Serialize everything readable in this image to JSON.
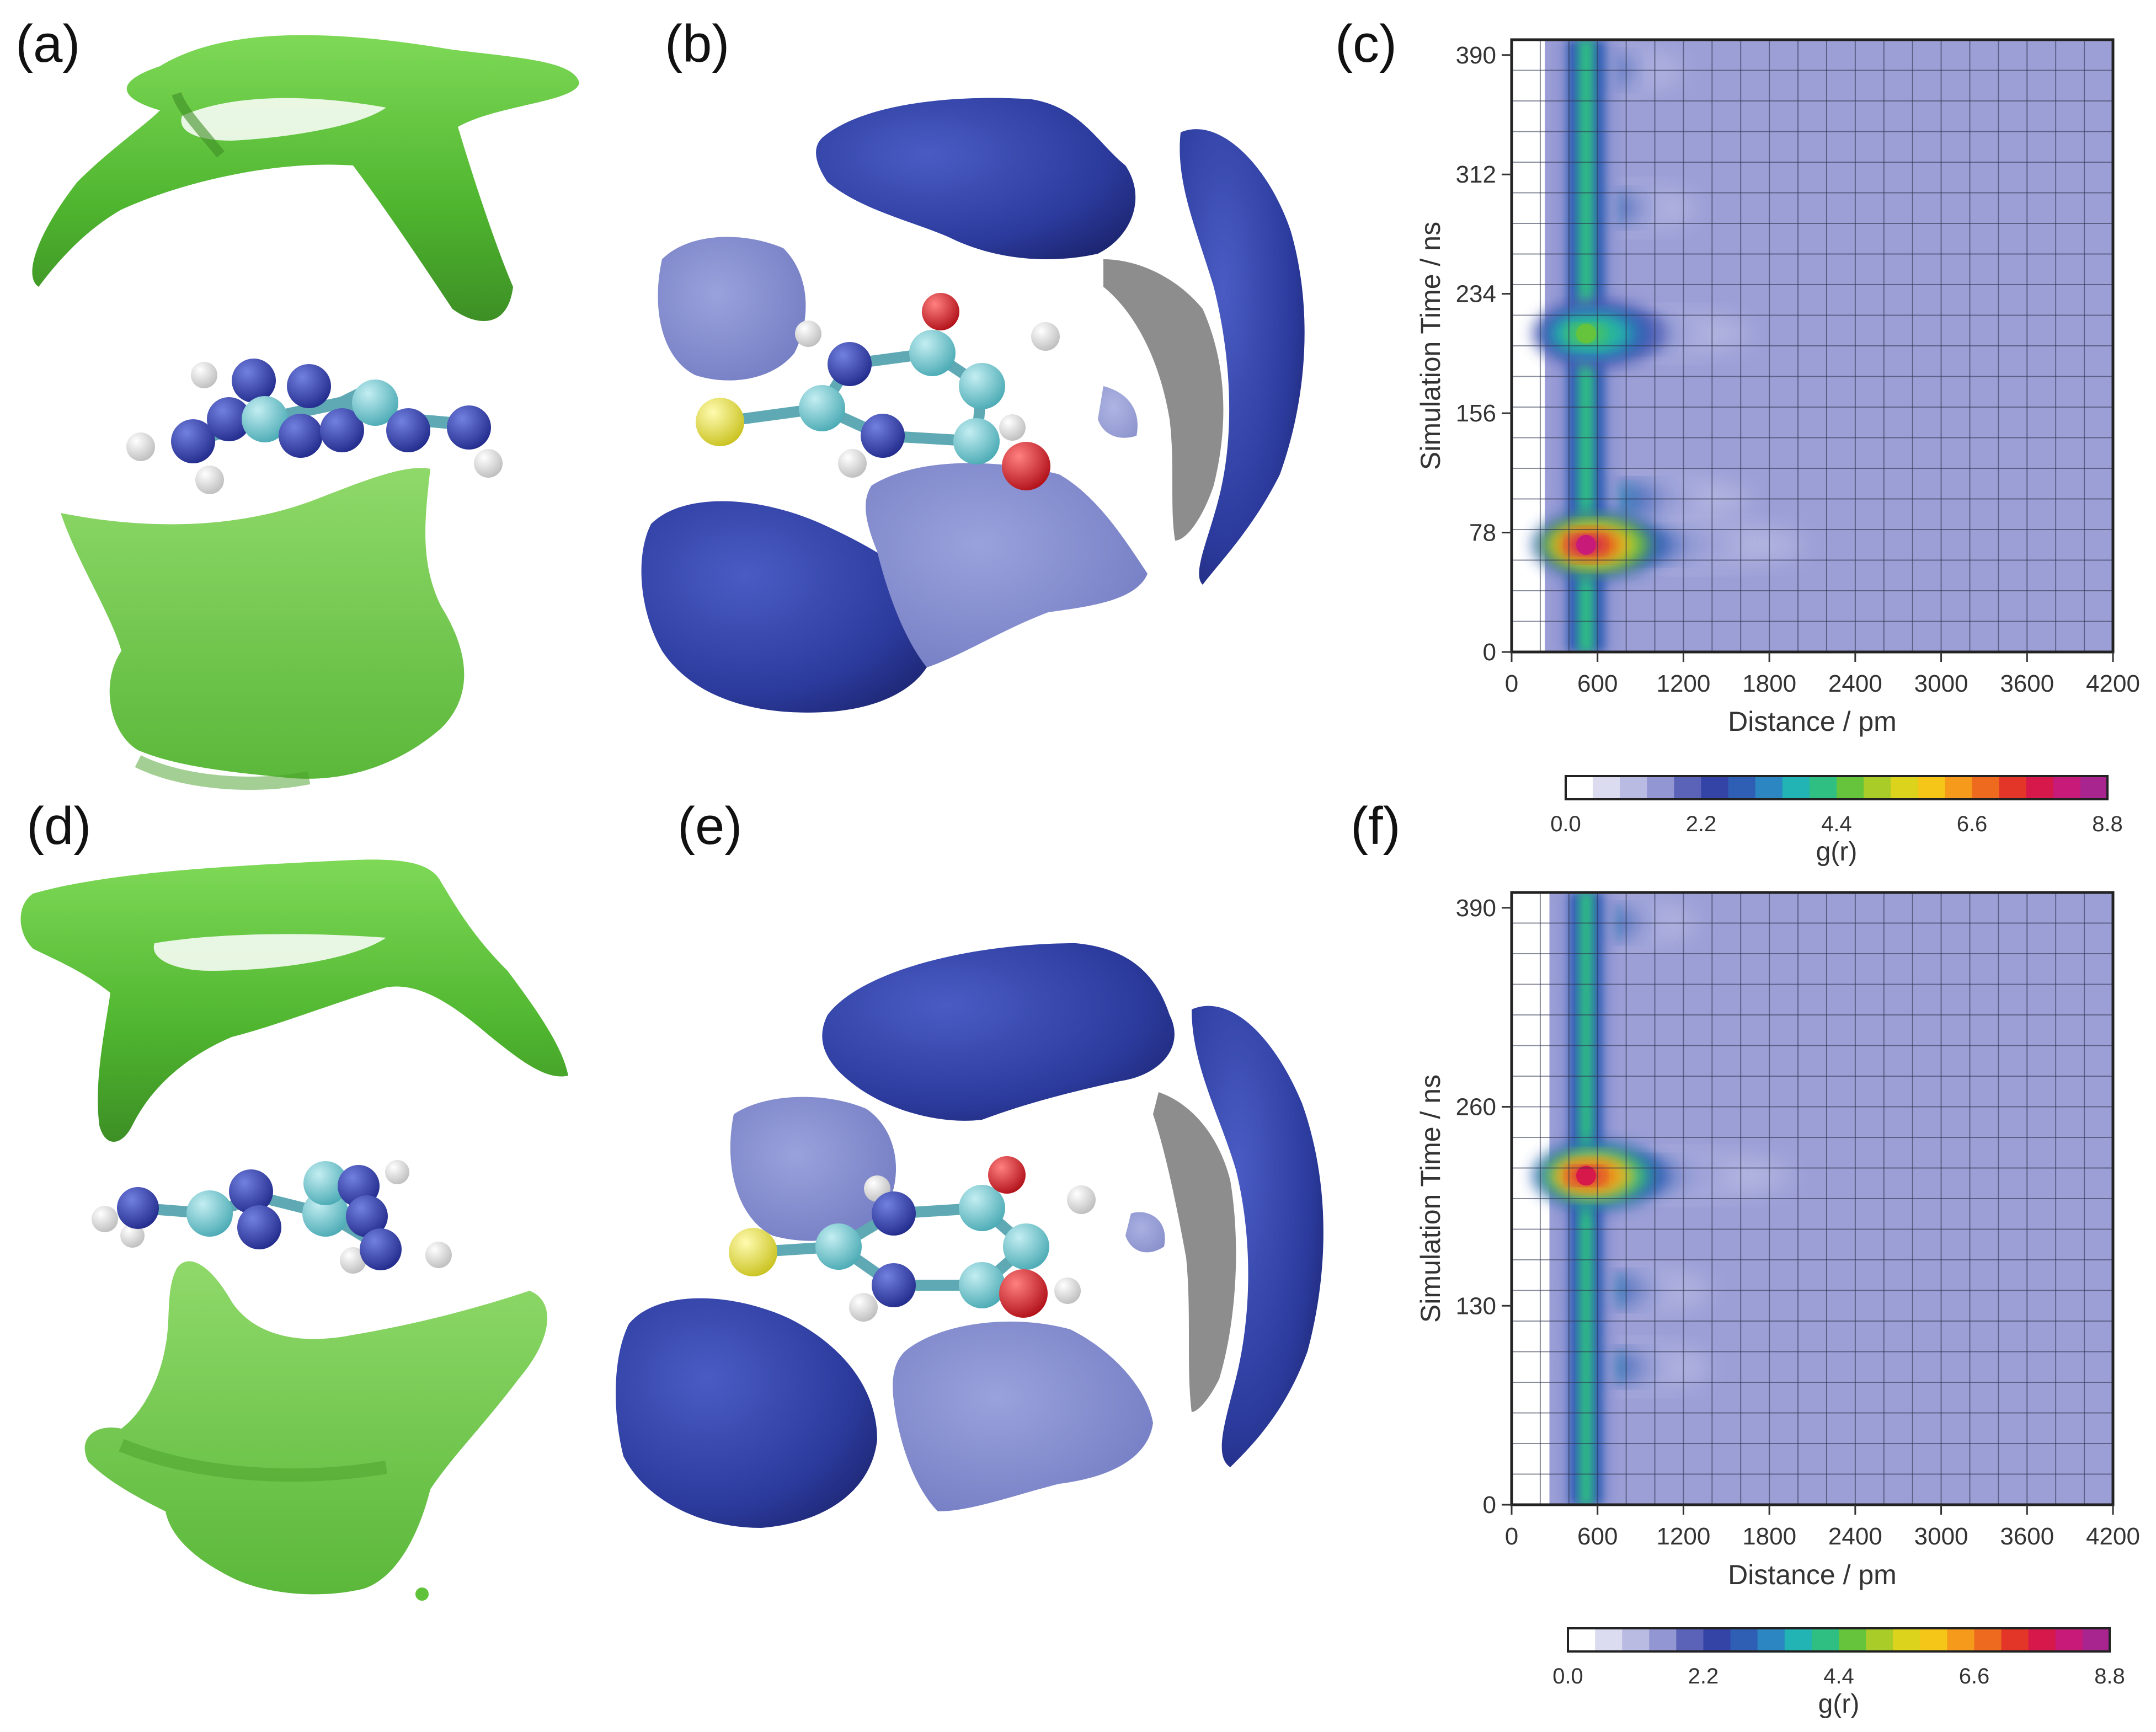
{
  "panel_labels": {
    "a": "(a)",
    "b": "(b)",
    "c": "(c)",
    "d": "(d)",
    "e": "(e)",
    "f": "(f)"
  },
  "colors": {
    "green_isosurface": "#5fc23a",
    "blue_isosurface": "#2b3a9c",
    "blue_isosurface_light": "#7a84c9",
    "nitrogen_atom": "#2e3aa8",
    "carbon_atom": "#66c4cc",
    "hydrogen_atom": "#f2f2f2",
    "oxygen_atom": "#d8242a",
    "sulfur_atom": "#ece64a",
    "plot_background": "#9c9fd6"
  },
  "colorscale": [
    "#ffffff",
    "#dcdcf1",
    "#b9bbe3",
    "#9296d3",
    "#5a63b8",
    "#3443a6",
    "#2f5fb4",
    "#2b86c2",
    "#22b3b5",
    "#2fbf83",
    "#66c43c",
    "#a9cc28",
    "#dcd41c",
    "#f5c618",
    "#f59a1a",
    "#ee6a1e",
    "#e33628",
    "#d6194a",
    "#c81a79",
    "#a8248f"
  ],
  "chart_data": [
    {
      "type": "heatmap",
      "panel": "(c)",
      "xlabel": "Distance / pm",
      "ylabel": "Simulation Time / ns",
      "xlim": [
        0,
        4200
      ],
      "ylim": [
        0,
        400
      ],
      "xticks": [
        "0",
        "600",
        "1200",
        "1800",
        "2400",
        "3000",
        "3600",
        "4200"
      ],
      "yticks": [
        "0",
        "78",
        "156",
        "234",
        "312",
        "390"
      ],
      "colorbar": {
        "label": "g(r)",
        "range": [
          0.0,
          8.8
        ],
        "ticks": [
          "0.0",
          "2.2",
          "4.4",
          "6.6",
          "8.8"
        ]
      },
      "features": [
        {
          "description": "first solvation shell band",
          "x_center": 520,
          "x_halfwidth": 90,
          "g_peak": 3.2
        },
        {
          "hotspot": true,
          "x": 520,
          "y": 70,
          "g": 8.2
        },
        {
          "hotspot": true,
          "x": 520,
          "y": 208,
          "g": 4.8
        }
      ],
      "plume_extent": [
        {
          "y": 70,
          "x_max": 2100
        },
        {
          "y": 100,
          "x_max": 1700
        },
        {
          "y": 208,
          "x_max": 1700
        },
        {
          "y": 290,
          "x_max": 1300
        },
        {
          "y": 380,
          "x_max": 1200
        }
      ]
    },
    {
      "type": "heatmap",
      "panel": "(f)",
      "xlabel": "Distance / pm",
      "ylabel": "Simulation Time / ns",
      "xlim": [
        0,
        4200
      ],
      "ylim": [
        0,
        400
      ],
      "xticks": [
        "0",
        "600",
        "1200",
        "1800",
        "2400",
        "3000",
        "3600",
        "4200"
      ],
      "yticks": [
        "0",
        "130",
        "260",
        "390"
      ],
      "colorbar": {
        "label": "g(r)",
        "range": [
          0.0,
          8.8
        ],
        "ticks": [
          "0.0",
          "2.2",
          "4.4",
          "6.6",
          "8.8"
        ]
      },
      "features": [
        {
          "description": "first solvation shell band",
          "x_center": 520,
          "x_halfwidth": 80,
          "g_peak": 3.0
        },
        {
          "hotspot": true,
          "x": 520,
          "y": 215,
          "g": 7.8
        }
      ],
      "plume_extent": [
        {
          "y": 215,
          "x_max": 2000
        },
        {
          "y": 140,
          "x_max": 1400
        },
        {
          "y": 90,
          "x_max": 1400
        },
        {
          "y": 380,
          "x_max": 1300
        }
      ]
    }
  ]
}
